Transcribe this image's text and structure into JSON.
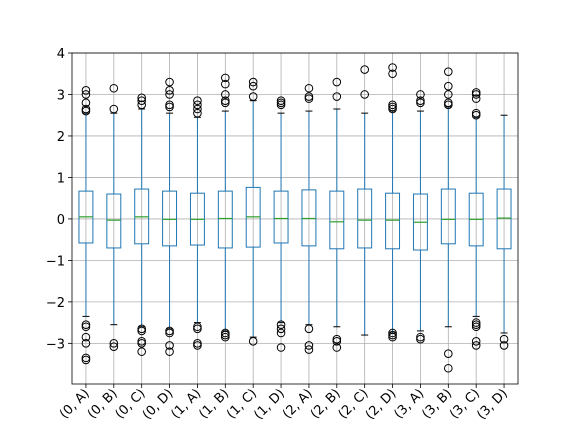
{
  "chart_data": {
    "type": "box",
    "categories": [
      "(0, A)",
      "(0, B)",
      "(0, C)",
      "(0, D)",
      "(1, A)",
      "(1, B)",
      "(1, C)",
      "(1, D)",
      "(2, A)",
      "(2, B)",
      "(2, C)",
      "(2, D)",
      "(3, A)",
      "(3, B)",
      "(3, C)",
      "(3, D)"
    ],
    "boxes": [
      {
        "whislo": -2.35,
        "q1": -0.58,
        "med": 0.05,
        "q3": 0.67,
        "whishi": 2.55,
        "fliers": [
          2.6,
          2.65,
          2.8,
          3.0,
          3.1,
          -2.55,
          -2.6,
          -2.85,
          -3.0,
          -3.35,
          -3.4
        ]
      },
      {
        "whislo": -2.55,
        "q1": -0.7,
        "med": -0.03,
        "q3": 0.6,
        "whishi": 2.55,
        "fliers": [
          2.65,
          3.15,
          -3.0,
          -3.08
        ]
      },
      {
        "whislo": -2.6,
        "q1": -0.6,
        "med": 0.05,
        "q3": 0.72,
        "whishi": 2.65,
        "fliers": [
          2.75,
          2.85,
          2.92,
          -2.65,
          -2.7,
          -2.95,
          -3.0,
          -3.2
        ]
      },
      {
        "whislo": -2.65,
        "q1": -0.65,
        "med": -0.01,
        "q3": 0.67,
        "whishi": 2.55,
        "fliers": [
          2.7,
          2.75,
          3.0,
          3.1,
          3.3,
          -2.7,
          -2.75,
          -3.05,
          -3.2
        ]
      },
      {
        "whislo": -2.5,
        "q1": -0.63,
        "med": -0.01,
        "q3": 0.62,
        "whishi": 2.45,
        "fliers": [
          2.55,
          2.65,
          2.75,
          2.85,
          -2.6,
          -2.65,
          -3.0,
          -3.05
        ]
      },
      {
        "whislo": -2.7,
        "q1": -0.7,
        "med": 0.01,
        "q3": 0.67,
        "whishi": 2.6,
        "fliers": [
          2.8,
          2.85,
          3.0,
          3.25,
          3.4,
          -2.75,
          -2.8,
          -2.85
        ]
      },
      {
        "whislo": -2.85,
        "q1": -0.68,
        "med": 0.05,
        "q3": 0.76,
        "whishi": 2.85,
        "fliers": [
          2.95,
          3.2,
          3.3,
          -2.95
        ]
      },
      {
        "whislo": -2.5,
        "q1": -0.58,
        "med": 0.01,
        "q3": 0.67,
        "whishi": 2.55,
        "fliers": [
          2.75,
          2.8,
          2.85,
          -2.55,
          -2.65,
          -2.75,
          -3.1
        ]
      },
      {
        "whislo": -2.55,
        "q1": -0.65,
        "med": 0.01,
        "q3": 0.7,
        "whishi": 2.6,
        "fliers": [
          2.9,
          2.95,
          3.15,
          -2.65,
          -3.05,
          -3.15
        ]
      },
      {
        "whislo": -2.6,
        "q1": -0.72,
        "med": -0.07,
        "q3": 0.67,
        "whishi": 2.65,
        "fliers": [
          2.95,
          3.3,
          -2.9,
          -2.95,
          -3.1
        ]
      },
      {
        "whislo": -2.8,
        "q1": -0.7,
        "med": -0.03,
        "q3": 0.72,
        "whishi": 2.55,
        "fliers": [
          3.0,
          3.6
        ]
      },
      {
        "whislo": -2.75,
        "q1": -0.72,
        "med": -0.03,
        "q3": 0.62,
        "whishi": 2.6,
        "fliers": [
          2.65,
          2.7,
          2.75,
          3.5,
          3.65,
          -2.75,
          -2.8,
          -2.85
        ]
      },
      {
        "whislo": -2.7,
        "q1": -0.75,
        "med": -0.08,
        "q3": 0.6,
        "whishi": 2.6,
        "fliers": [
          2.8,
          2.85,
          3.0,
          -2.85,
          -2.9
        ]
      },
      {
        "whislo": -2.6,
        "q1": -0.6,
        "med": -0.01,
        "q3": 0.72,
        "whishi": 2.7,
        "fliers": [
          2.75,
          2.8,
          3.0,
          3.2,
          3.55,
          -3.25,
          -3.6
        ]
      },
      {
        "whislo": -2.35,
        "q1": -0.65,
        "med": -0.01,
        "q3": 0.62,
        "whishi": 2.45,
        "fliers": [
          2.5,
          2.55,
          2.9,
          3.0,
          3.05,
          -2.5,
          -2.55,
          -2.6,
          -2.95,
          -3.05
        ]
      },
      {
        "whislo": -2.75,
        "q1": -0.72,
        "med": 0.02,
        "q3": 0.72,
        "whishi": 2.5,
        "fliers": [
          -2.9,
          -3.05
        ]
      }
    ],
    "color": "#1f77b4",
    "median_color": "#2ca02c",
    "flier_color": "#000000",
    "ylim": [
      -3.98,
      4
    ],
    "yticks": [
      {
        "value": -3,
        "label": "−3"
      },
      {
        "value": -2,
        "label": "−2"
      },
      {
        "value": -1,
        "label": "−1"
      },
      0,
      1,
      2,
      3,
      4
    ],
    "grid": true
  }
}
